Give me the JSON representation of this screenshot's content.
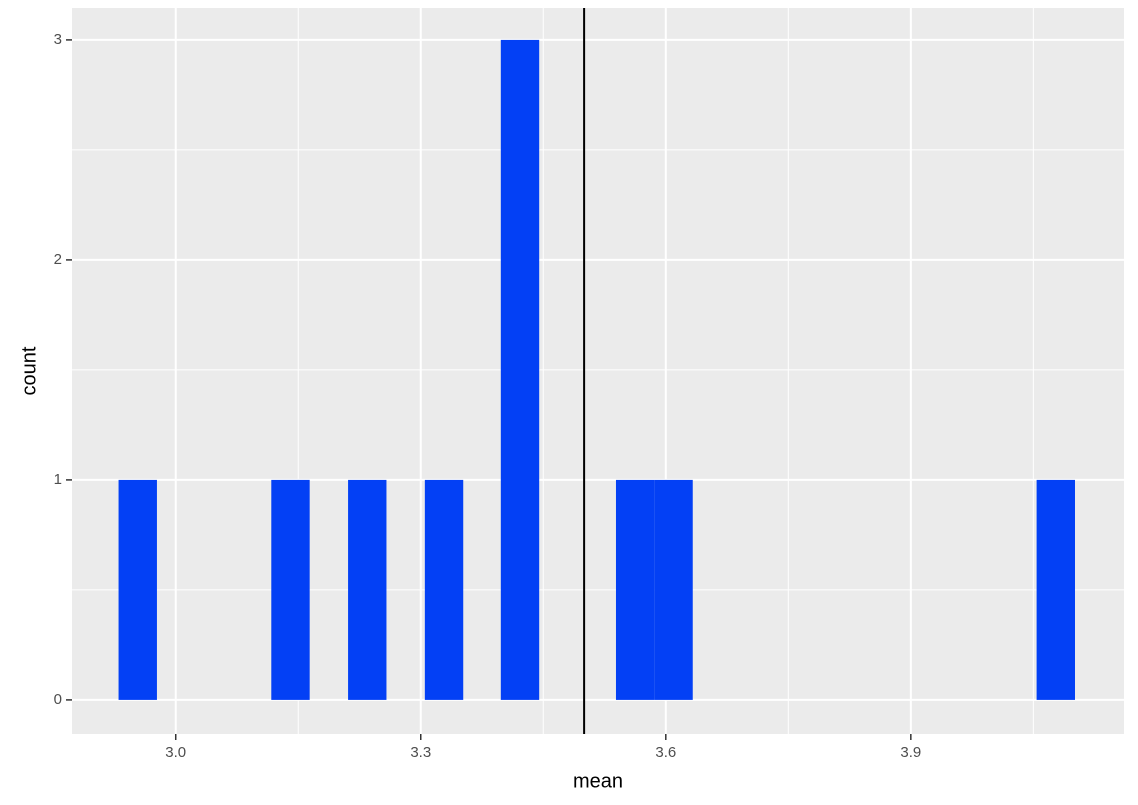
{
  "chart_data": {
    "type": "histogram",
    "x_label": "mean",
    "y_label": "count",
    "bins": [
      2.93,
      2.977,
      3.024,
      3.071,
      3.117,
      3.164,
      3.211,
      3.258,
      3.305,
      3.352,
      3.398,
      3.445,
      3.492,
      3.539,
      3.586,
      3.633,
      3.679,
      3.726,
      3.773,
      3.82,
      3.867,
      3.914,
      3.96,
      4.007,
      4.054,
      4.101
    ],
    "values": [
      1,
      0,
      0,
      0,
      1,
      0,
      1,
      0,
      1,
      0,
      3,
      0,
      0,
      1,
      1,
      0,
      0,
      0,
      0,
      0,
      0,
      0,
      0,
      0,
      1
    ],
    "color": "#0340f5",
    "vline": 3.5,
    "xlim": [
      2.873,
      4.161
    ],
    "ylim": [
      -0.155,
      3.145
    ],
    "xticks": [
      {
        "value": 3.0,
        "label": "3.0"
      },
      3.3,
      3.6,
      3.9
    ],
    "yticks": [
      0,
      1,
      2,
      3
    ],
    "xminor": [
      3.15,
      3.45,
      3.75,
      4.05
    ],
    "yminor": [
      0.5,
      1.5,
      2.5
    ],
    "grid": true
  }
}
